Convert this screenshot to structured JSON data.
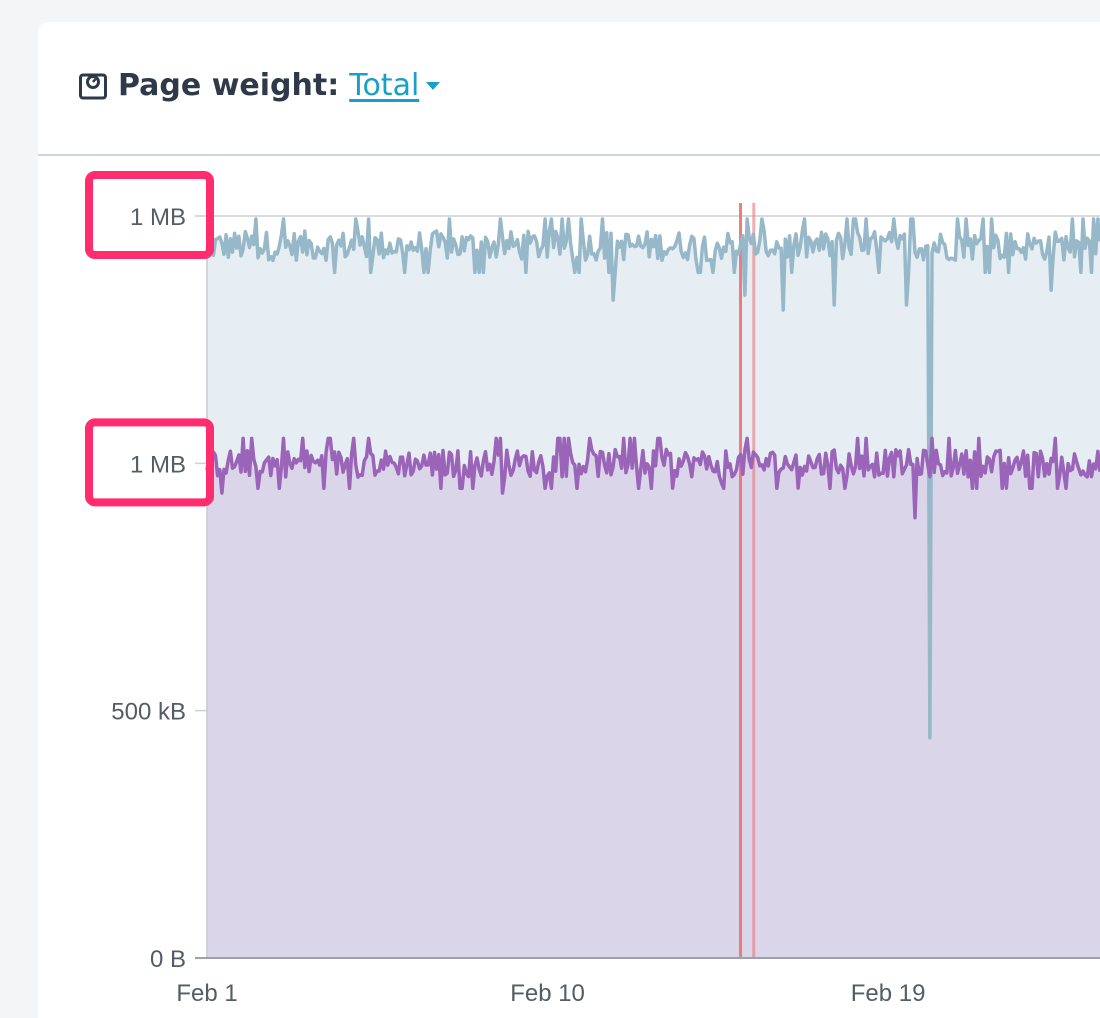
{
  "header": {
    "title_label": "Page weight:",
    "metric_select": "Total"
  },
  "colors": {
    "series_total": "#97b8c8",
    "series_total_fill": "#e7eef3",
    "series_second": "#9a64b8",
    "series_second_fill": "#dbd5e9",
    "marker": "#e8787b",
    "highlight_box": "#ff2d6e",
    "link": "#1aa0c8"
  },
  "chart_data": {
    "type": "area",
    "y_ticks": [
      {
        "label": "1 MB",
        "value": 1500,
        "highlighted": true
      },
      {
        "label": "1 MB",
        "value": 1000,
        "highlighted": true
      },
      {
        "label": "500 kB",
        "value": 500,
        "highlighted": false
      },
      {
        "label": "0 B",
        "value": 0,
        "highlighted": false
      }
    ],
    "ylim": [
      0,
      1500
    ],
    "x_ticks": [
      {
        "label": "Feb 1",
        "day": 1
      },
      {
        "label": "Feb 10",
        "day": 10
      },
      {
        "label": "Feb 19",
        "day": 19
      }
    ],
    "xlim_days": [
      1,
      24.6
    ],
    "markers_days": [
      15.1,
      15.45
    ],
    "series": [
      {
        "key": "total",
        "baseline": 1440,
        "noise": 30,
        "dips": [
          {
            "day": 11.75,
            "value": 1330
          },
          {
            "day": 15.2,
            "value": 1340
          },
          {
            "day": 16.2,
            "value": 1310
          },
          {
            "day": 17.6,
            "value": 1320
          },
          {
            "day": 19.5,
            "value": 1320
          },
          {
            "day": 20.08,
            "value": 445
          },
          {
            "day": 23.3,
            "value": 1350
          }
        ]
      },
      {
        "key": "second",
        "baseline": 1000,
        "noise": 28,
        "dips": [
          {
            "day": 1.4,
            "value": 940
          },
          {
            "day": 8.8,
            "value": 940
          },
          {
            "day": 13.3,
            "value": 950
          },
          {
            "day": 14.6,
            "value": 960
          },
          {
            "day": 16.6,
            "value": 950
          },
          {
            "day": 19.7,
            "value": 890
          },
          {
            "day": 22.1,
            "value": 950
          }
        ]
      }
    ],
    "grid": true,
    "legend": "none"
  }
}
